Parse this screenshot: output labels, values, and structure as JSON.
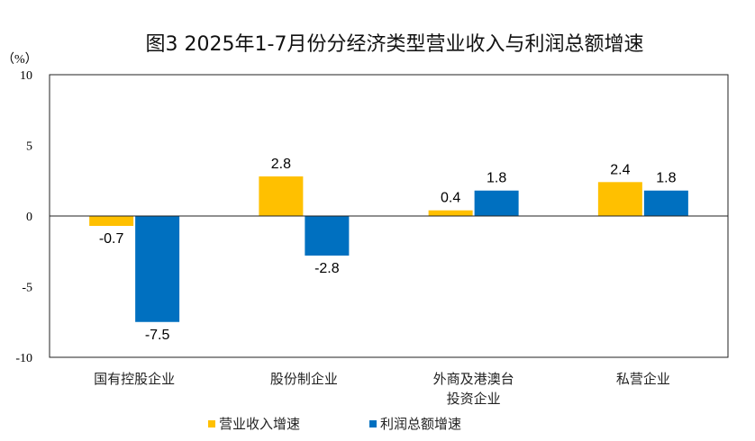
{
  "chart_data": {
    "type": "bar",
    "title": "图3 2025年1-7月份分经济类型营业收入与利润总额增速",
    "ylabel": "（%）",
    "ylim": [
      -10,
      10
    ],
    "yticks": [
      "10",
      "5",
      "0",
      "-5",
      "-10"
    ],
    "categories": [
      [
        "国有控股企业"
      ],
      [
        "股份制企业"
      ],
      [
        "外商及港澳台",
        "投资企业"
      ],
      [
        "私营企业"
      ]
    ],
    "series": [
      {
        "name": "营业收入增速",
        "color": "#FFC000",
        "values": [
          -0.7,
          2.8,
          0.4,
          2.4
        ],
        "labels": [
          "-0.7",
          "2.8",
          "0.4",
          "2.4"
        ]
      },
      {
        "name": "利润总额增速",
        "color": "#0070C0",
        "values": [
          -7.5,
          -2.8,
          1.8,
          1.8
        ],
        "labels": [
          "-7.5",
          "-2.8",
          "1.8",
          "1.8"
        ]
      }
    ],
    "legend_position": "bottom",
    "grid": false
  }
}
